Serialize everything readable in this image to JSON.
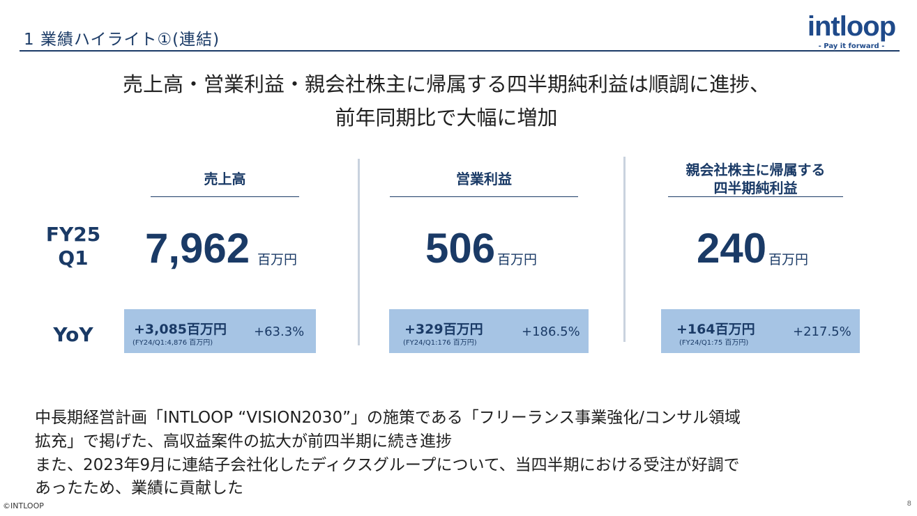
{
  "header": {
    "section_title": "1 業績ハイライト①(連結)",
    "logo_text": "intloop",
    "logo_tagline": "- Pay it forward -"
  },
  "headline": {
    "line1": "売上高・営業利益・親会社株主に帰属する四半期純利益は順調に進捗、",
    "line2": "前年同期比で大幅に増加"
  },
  "row_labels": {
    "period_line1": "FY25",
    "period_line2": "Q1",
    "yoy": "YoY"
  },
  "metrics": [
    {
      "label_line1": "売上高",
      "label_line2": "",
      "value": "7,962",
      "unit": "百万円",
      "yoy_amount": "+3,085百万円",
      "yoy_prev": "(FY24/Q1:4,876 百万円)",
      "yoy_pct": "+63.3%"
    },
    {
      "label_line1": "営業利益",
      "label_line2": "",
      "value": "506",
      "unit": "百万円",
      "yoy_amount": "+329百万円",
      "yoy_prev": "(FY24/Q1:176 百万円)",
      "yoy_pct": "+186.5%"
    },
    {
      "label_line1": "親会社株主に帰属する",
      "label_line2": "四半期純利益",
      "value": "240",
      "unit": "百万円",
      "yoy_amount": "+164百万円",
      "yoy_prev": "(FY24/Q1:75 百万円)",
      "yoy_pct": "+217.5%"
    }
  ],
  "body_text": [
    "中長期経営計画「INTLOOP “VISION2030”」の施策である「フリーランス事業強化/コンサル領域",
    "拡充」で掲げた、高収益案件の拡大が前四半期に続き進捗",
    "また、2023年9月に連結子会社化したディクスグループについて、当四半期における受注が好調で",
    "あったため、業績に貢献した"
  ],
  "footer": {
    "copyright": "©INTLOOP",
    "page_number": "8"
  },
  "colors": {
    "navy": "#1a3a66",
    "yoy_box": "#a6c4e4",
    "divider": "#c9d2de"
  }
}
